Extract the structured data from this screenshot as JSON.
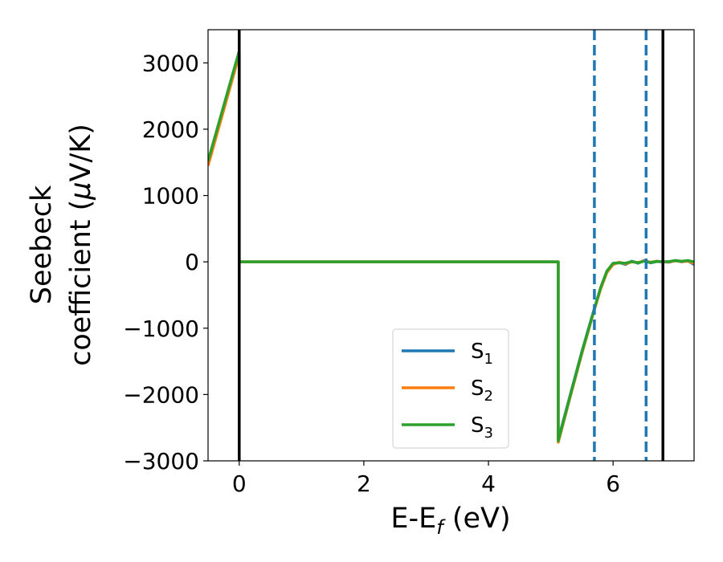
{
  "chart_data": {
    "type": "line",
    "xlabel": "E-E",
    "xlabel_sub": "f",
    "xlabel_unit": " (eV)",
    "ylabel_line1": "Seebeck",
    "ylabel_line2": "coefficient  (",
    "ylabel_mu": "μ",
    "ylabel_unit": "V/K)",
    "xlim": [
      -0.5,
      7.3
    ],
    "ylim": [
      -3000,
      3500
    ],
    "x_ticks": [
      0,
      2,
      4,
      6
    ],
    "x_tick_labels": [
      "0",
      "2",
      "4",
      "6"
    ],
    "y_ticks": [
      -3000,
      -2000,
      -1000,
      0,
      1000,
      2000,
      3000
    ],
    "y_tick_labels": [
      "−3000",
      "−2000",
      "−1000",
      "0",
      "1000",
      "2000",
      "3000"
    ],
    "grid": false,
    "legend_position": "lower-center",
    "series": [
      {
        "name": "S",
        "sub": "1",
        "color": "#1f77b4",
        "x": [
          -0.5,
          0.0,
          0.0,
          0.02,
          5.12,
          5.12,
          5.3,
          5.5,
          5.7,
          5.8,
          5.9,
          6.0,
          6.1,
          6.2,
          6.3,
          6.4,
          6.5,
          6.6,
          6.7,
          6.8,
          6.9,
          7.0,
          7.1,
          7.2,
          7.3
        ],
        "y": [
          1500,
          3150,
          0,
          0,
          0,
          -2680,
          -2050,
          -1350,
          -700,
          -400,
          -150,
          -30,
          -10,
          -40,
          10,
          -20,
          20,
          -15,
          5,
          0,
          -5,
          20,
          0,
          15,
          -40
        ]
      },
      {
        "name": "S",
        "sub": "2",
        "color": "#ff7f0e",
        "x": [
          -0.5,
          0.0,
          0.0,
          0.02,
          5.12,
          5.12,
          5.3,
          5.5,
          5.7,
          5.8,
          5.9,
          6.0,
          6.1,
          6.2,
          6.3,
          6.4,
          6.5,
          6.6,
          6.7,
          6.8,
          6.9,
          7.0,
          7.1,
          7.2,
          7.3
        ],
        "y": [
          1450,
          3120,
          0,
          0,
          0,
          -2720,
          -2080,
          -1380,
          -720,
          -410,
          -160,
          -40,
          -5,
          -30,
          0,
          -10,
          15,
          -5,
          10,
          0,
          0,
          15,
          5,
          10,
          -20
        ]
      },
      {
        "name": "S",
        "sub": "3",
        "color": "#2ca02c",
        "x": [
          -0.5,
          0.0,
          0.0,
          0.02,
          5.12,
          5.12,
          5.3,
          5.5,
          5.7,
          5.8,
          5.9,
          6.0,
          6.1,
          6.2,
          6.3,
          6.4,
          6.5,
          6.6,
          6.7,
          6.8,
          6.9,
          7.0,
          7.1,
          7.2,
          7.3
        ],
        "y": [
          1520,
          3180,
          0,
          0,
          0,
          -2700,
          -2060,
          -1360,
          -710,
          -390,
          -140,
          -20,
          -15,
          -20,
          5,
          -15,
          10,
          -10,
          8,
          2,
          5,
          20,
          10,
          20,
          0
        ]
      }
    ],
    "vlines": [
      {
        "x": 0.0,
        "color": "#000000",
        "style": "solid"
      },
      {
        "x": 6.8,
        "color": "#000000",
        "style": "solid"
      },
      {
        "x": 5.7,
        "color": "#1f77b4",
        "style": "dashed"
      },
      {
        "x": 6.53,
        "color": "#1f77b4",
        "style": "dashed"
      }
    ]
  }
}
